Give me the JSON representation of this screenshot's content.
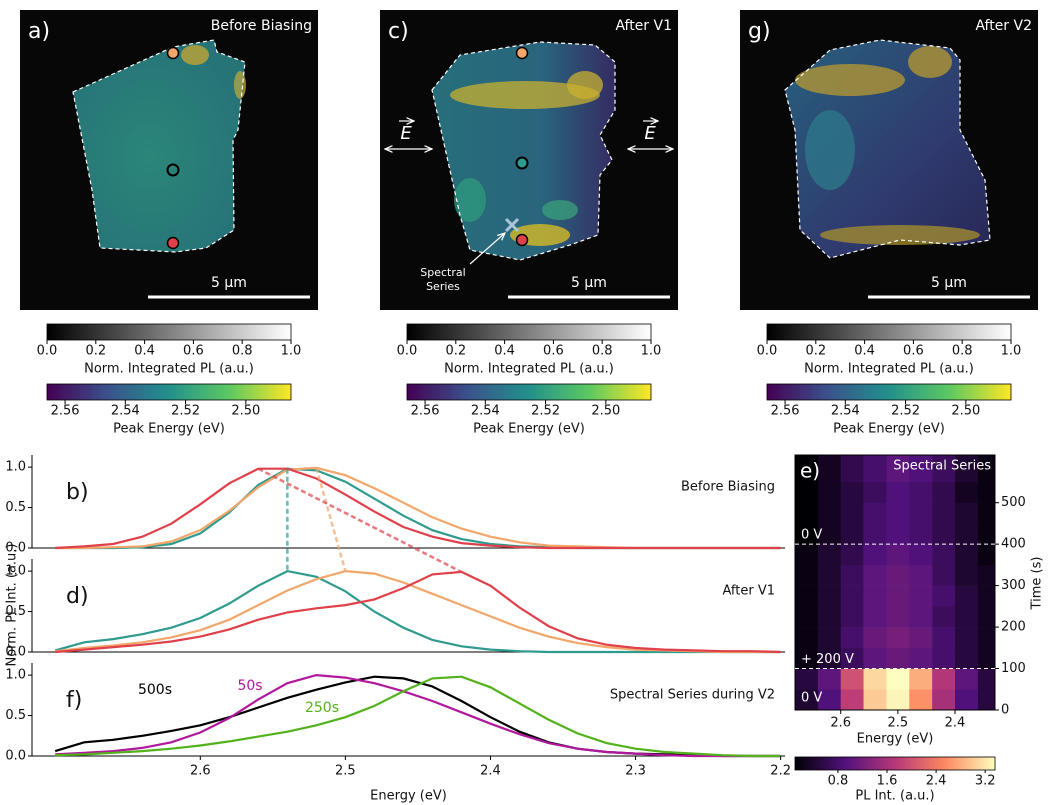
{
  "maps": [
    {
      "label": "a)",
      "title": "Before Biasing",
      "scale": "5 μm"
    },
    {
      "label": "c)",
      "title": "After V1",
      "scale": "5 μm",
      "field_label": "E",
      "annotation_lines": [
        "Spectral",
        "Series"
      ]
    },
    {
      "label": "g)",
      "title": "After V2",
      "scale": "5 μm"
    }
  ],
  "colorbars": {
    "intensity": {
      "label": "Norm. Integrated PL (a.u.)",
      "lim": [
        0,
        1
      ],
      "ticks": [
        {
          "value": 0,
          "label": "0.0"
        },
        0.2,
        0.4,
        0.6,
        0.8,
        {
          "value": 1,
          "label": "1.0"
        }
      ]
    },
    "energy": {
      "label": "Peak Energy (eV)",
      "lim": [
        2.566,
        2.485
      ],
      "ticks": [
        2.56,
        2.54,
        2.52,
        {
          "value": 2.5,
          "label": "2.50"
        }
      ]
    }
  },
  "chart_data": [
    {
      "type": "line",
      "xlabel": "Energy (eV)",
      "ylabel": "Norm. PL Int. (a.u.)",
      "x": [
        2.7,
        2.68,
        2.66,
        2.64,
        2.62,
        2.6,
        2.58,
        2.56,
        2.54,
        2.52,
        2.5,
        2.48,
        2.46,
        2.44,
        2.42,
        2.4,
        2.38,
        2.36,
        2.34,
        2.32,
        2.3,
        2.28,
        2.26,
        2.24,
        2.22,
        2.2
      ],
      "xlim": [
        2.716,
        2.197
      ],
      "xticks": [
        2.6,
        2.5,
        2.4,
        2.3,
        2.2
      ],
      "ylim": [
        0,
        1.15
      ],
      "yticks": [
        {
          "value": 0,
          "label": "0.0"
        },
        0.5,
        {
          "value": 1,
          "label": "1.0"
        }
      ],
      "panels": [
        {
          "label": "b)",
          "title": "Before Biasing",
          "series": [
            {
              "color": "#2f9a8e",
              "values": [
                0,
                0,
                0,
                0.01,
                0.05,
                0.18,
                0.44,
                0.78,
                0.98,
                0.96,
                0.82,
                0.61,
                0.4,
                0.22,
                0.11,
                0.05,
                0.02,
                0.01,
                0,
                0,
                0,
                0,
                0,
                0,
                0,
                0
              ]
            },
            {
              "color": "#f2a66a",
              "values": [
                0,
                0,
                0.01,
                0.02,
                0.08,
                0.22,
                0.46,
                0.75,
                0.97,
                0.99,
                0.9,
                0.74,
                0.56,
                0.38,
                0.24,
                0.14,
                0.07,
                0.03,
                0.02,
                0.01,
                0,
                0,
                0,
                0,
                0,
                0
              ]
            },
            {
              "color": "#e0404a",
              "values": [
                0,
                0.02,
                0.05,
                0.14,
                0.3,
                0.54,
                0.8,
                0.98,
                0.98,
                0.86,
                0.66,
                0.45,
                0.26,
                0.14,
                0.06,
                0.03,
                0.01,
                0,
                0,
                0,
                0,
                0,
                0,
                0,
                0,
                0
              ]
            }
          ]
        },
        {
          "label": "d)",
          "title": "After V1",
          "series": [
            {
              "color": "#2f9a8e",
              "values": [
                0.02,
                0.12,
                0.16,
                0.22,
                0.3,
                0.42,
                0.6,
                0.82,
                1,
                0.93,
                0.75,
                0.5,
                0.3,
                0.15,
                0.07,
                0.03,
                0.01,
                0,
                0,
                0,
                0,
                0,
                0,
                0,
                0,
                0
              ]
            },
            {
              "color": "#f2a66a",
              "values": [
                0.01,
                0.05,
                0.08,
                0.12,
                0.18,
                0.27,
                0.4,
                0.58,
                0.76,
                0.9,
                1,
                0.97,
                0.86,
                0.72,
                0.58,
                0.44,
                0.3,
                0.19,
                0.11,
                0.06,
                0.03,
                0.02,
                0.01,
                0,
                0,
                0
              ]
            },
            {
              "color": "#e0404a",
              "values": [
                0,
                0.03,
                0.06,
                0.09,
                0.13,
                0.19,
                0.28,
                0.4,
                0.49,
                0.54,
                0.58,
                0.65,
                0.79,
                0.96,
                0.99,
                0.82,
                0.55,
                0.32,
                0.17,
                0.09,
                0.05,
                0.03,
                0.02,
                0.01,
                0.01,
                0
              ]
            }
          ]
        },
        {
          "label": "f)",
          "title": "Spectral Series during V2",
          "series": [
            {
              "name": "500s",
              "color": "#000000",
              "values": [
                0.06,
                0.17,
                0.2,
                0.25,
                0.31,
                0.38,
                0.48,
                0.6,
                0.72,
                0.82,
                0.91,
                0.98,
                0.96,
                0.86,
                0.68,
                0.48,
                0.3,
                0.17,
                0.09,
                0.05,
                0.03,
                0.02,
                0.01,
                0,
                0,
                0
              ]
            },
            {
              "name": "50s",
              "color": "#b0189e",
              "values": [
                0.02,
                0.04,
                0.06,
                0.1,
                0.17,
                0.29,
                0.47,
                0.7,
                0.9,
                1,
                0.97,
                0.9,
                0.8,
                0.68,
                0.54,
                0.4,
                0.27,
                0.16,
                0.09,
                0.05,
                0.03,
                0.01,
                0,
                0,
                0,
                0
              ]
            },
            {
              "name": "250s",
              "color": "#52b21c",
              "values": [
                0.01,
                0.02,
                0.04,
                0.06,
                0.09,
                0.13,
                0.18,
                0.24,
                0.3,
                0.38,
                0.48,
                0.62,
                0.8,
                0.96,
                0.98,
                0.85,
                0.65,
                0.45,
                0.28,
                0.16,
                0.09,
                0.05,
                0.03,
                0.01,
                0,
                0
              ]
            }
          ]
        }
      ]
    },
    {
      "type": "heatmap",
      "label": "e)",
      "title": "Spectral Series",
      "xlabel": "Energy (eV)",
      "ylabel": "Time (s)",
      "x_edges": [
        2.68,
        2.64,
        2.6,
        2.56,
        2.52,
        2.48,
        2.44,
        2.4,
        2.36,
        2.33
      ],
      "t_edges": [
        0,
        50,
        100,
        150,
        200,
        250,
        300,
        350,
        400,
        450,
        500,
        550,
        615
      ],
      "z": [
        [
          0.4,
          0.9,
          1.8,
          3.0,
          3.3,
          2.6,
          1.6,
          0.9,
          0.5
        ],
        [
          0.5,
          1.0,
          2.0,
          3.1,
          3.4,
          2.8,
          1.7,
          1.0,
          0.5
        ],
        [
          0.2,
          0.4,
          0.7,
          1.0,
          1.1,
          1.0,
          0.8,
          0.5,
          0.3
        ],
        [
          0.2,
          0.4,
          0.8,
          1.1,
          1.2,
          1.1,
          0.8,
          0.5,
          0.3
        ],
        [
          0.2,
          0.4,
          0.7,
          1.0,
          1.1,
          1.0,
          0.7,
          0.5,
          0.3
        ],
        [
          0.2,
          0.4,
          0.7,
          1.0,
          1.1,
          1.0,
          0.8,
          0.5,
          0.3
        ],
        [
          0.2,
          0.4,
          0.7,
          1.0,
          1.1,
          1.0,
          0.7,
          0.4,
          0.3
        ],
        [
          0.2,
          0.4,
          0.6,
          0.9,
          1.0,
          0.9,
          0.7,
          0.4,
          0.2
        ],
        [
          0.1,
          0.3,
          0.5,
          0.8,
          0.9,
          0.8,
          0.6,
          0.4,
          0.2
        ],
        [
          0.1,
          0.3,
          0.5,
          0.8,
          0.9,
          0.8,
          0.6,
          0.4,
          0.2
        ],
        [
          0.1,
          0.3,
          0.5,
          0.7,
          0.9,
          0.8,
          0.6,
          0.3,
          0.2
        ],
        [
          0.1,
          0.3,
          0.6,
          0.8,
          1.0,
          0.9,
          0.7,
          0.4,
          0.2
        ]
      ],
      "xlim": [
        2.68,
        2.33
      ],
      "xticks": [
        2.6,
        2.5,
        2.4
      ],
      "ylim": [
        0,
        615
      ],
      "yticks": [
        0,
        100,
        200,
        300,
        400,
        500
      ],
      "bias_lines": [
        {
          "t": 400,
          "label": "0 V"
        },
        {
          "t": 100,
          "label": "+ 200 V"
        }
      ],
      "start_label": "0 V",
      "colorbar": {
        "label": "PL Int. (a.u.)",
        "lim": [
          0.1,
          3.36
        ],
        "ticks": [
          0.8,
          1.6,
          2.4,
          3.2
        ]
      }
    }
  ]
}
